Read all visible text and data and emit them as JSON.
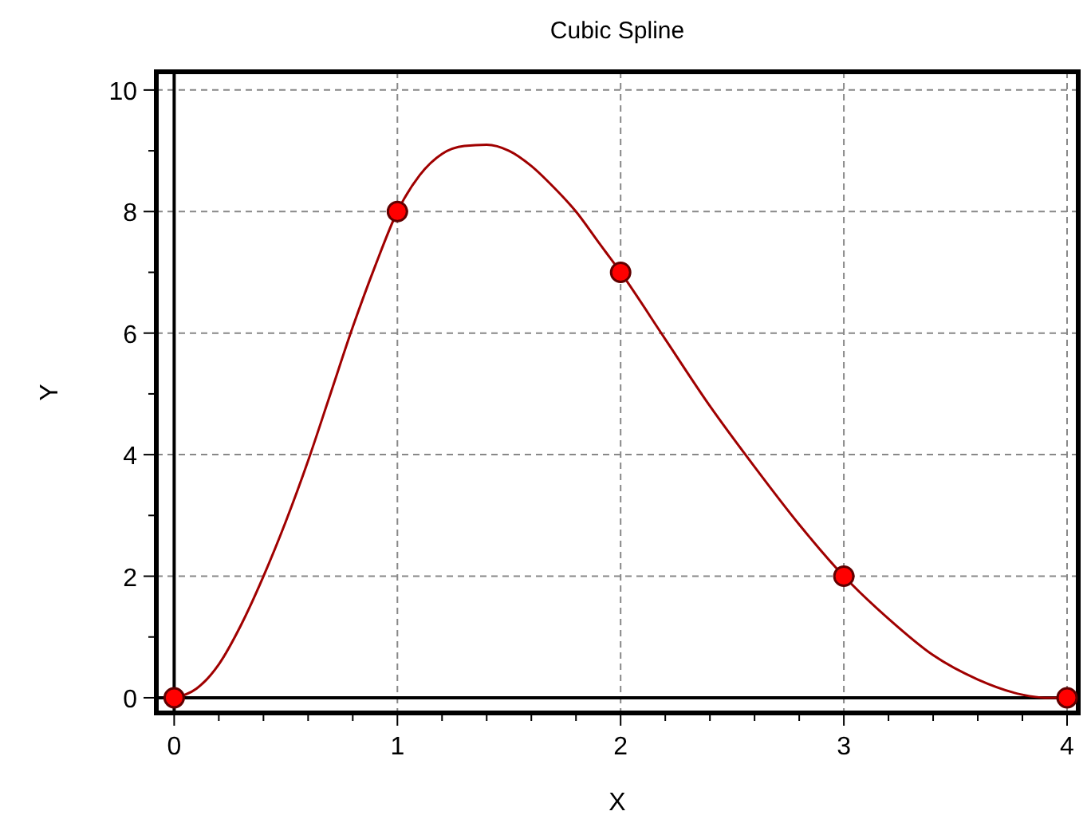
{
  "chart_data": {
    "type": "line",
    "title": "Cubic Spline",
    "xlabel": "X",
    "ylabel": "Y",
    "xlim": [
      -0.08,
      4.05
    ],
    "ylim": [
      -0.25,
      10.3
    ],
    "xticks": [
      0,
      1,
      2,
      3,
      4,
      {
        "value": 0.2,
        "label": null
      },
      {
        "value": 0.4,
        "label": null
      },
      {
        "value": 0.6,
        "label": null
      },
      {
        "value": 0.8,
        "label": null
      },
      {
        "value": 1.2,
        "label": null
      },
      {
        "value": 1.4,
        "label": null
      },
      {
        "value": 1.6,
        "label": null
      },
      {
        "value": 1.8,
        "label": null
      },
      {
        "value": 2.2,
        "label": null
      },
      {
        "value": 2.4,
        "label": null
      },
      {
        "value": 2.6,
        "label": null
      },
      {
        "value": 2.8,
        "label": null
      },
      {
        "value": 3.2,
        "label": null
      },
      {
        "value": 3.4,
        "label": null
      },
      {
        "value": 3.6,
        "label": null
      },
      {
        "value": 3.8,
        "label": null
      }
    ],
    "yticks": [
      0,
      2,
      4,
      6,
      8,
      10,
      {
        "value": 1,
        "label": null
      },
      {
        "value": 3,
        "label": null
      },
      {
        "value": 5,
        "label": null
      },
      {
        "value": 7,
        "label": null
      },
      {
        "value": 9,
        "label": null
      }
    ],
    "grid": true,
    "series": [
      {
        "color": "#a00000",
        "marker": "none",
        "x": [
          0,
          0.1,
          0.2,
          0.3,
          0.4,
          0.5,
          0.6,
          0.7,
          0.8,
          0.9,
          1,
          1.1,
          1.2,
          1.3,
          1.4,
          1.5,
          1.6,
          1.7,
          1.8,
          1.9,
          2,
          2.2,
          2.4,
          2.6,
          2.8,
          3,
          3.2,
          3.4,
          3.6,
          3.8,
          3.9,
          4
        ],
        "values": [
          0,
          0.15,
          0.55,
          1.2,
          2,
          2.9,
          3.9,
          5,
          6.1,
          7.1,
          8,
          8.6,
          8.95,
          9.08,
          9.1,
          9,
          8.75,
          8.4,
          8,
          7.5,
          7,
          5.9,
          4.8,
          3.8,
          2.85,
          2,
          1.3,
          0.7,
          0.3,
          0.05,
          0,
          0
        ]
      },
      {
        "type": "scatter",
        "color": "#ff0000",
        "marker": "circle",
        "x": [
          0,
          1,
          2,
          3,
          4
        ],
        "values": [
          0,
          8,
          7,
          2,
          0
        ]
      }
    ]
  }
}
